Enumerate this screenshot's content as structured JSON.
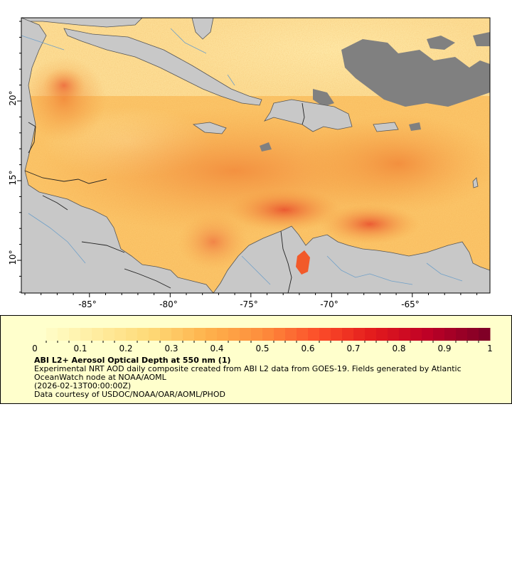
{
  "map": {
    "lon_ticks": [
      "-85°",
      "-80°",
      "-75°",
      "-70°",
      "-65°"
    ],
    "lat_ticks": [
      "20°",
      "15°",
      "10°"
    ],
    "colors": {
      "land": "#c8c8c8",
      "cloud": "#808080",
      "coast": "#555555",
      "border": "#222222",
      "river": "#6fa0c8"
    }
  },
  "legend": {
    "ticks": [
      "0",
      "0.1",
      "0.2",
      "0.3",
      "0.4",
      "0.5",
      "0.6",
      "0.7",
      "0.8",
      "0.9",
      "1"
    ],
    "title": "ABI L2+ Aerosol Optical Depth at 550 nm (1)",
    "line1": "Experimental NRT AOD daily composite created from ABI L2 data from GOES-19. Fields generated by Atlantic",
    "line2": "OceanWatch node at NOAA/AOML",
    "line3": "(2026-02-13T00:00:00Z)",
    "line4": "Data courtesy of USDOC/NOAA/OAR/AOML/PHOD",
    "colorbar": [
      "#ffffcc",
      "#ffeda0",
      "#fed976",
      "#feb24c",
      "#fd8d3c",
      "#fc4e2a",
      "#e31a1c",
      "#bd0026",
      "#800026"
    ]
  }
}
